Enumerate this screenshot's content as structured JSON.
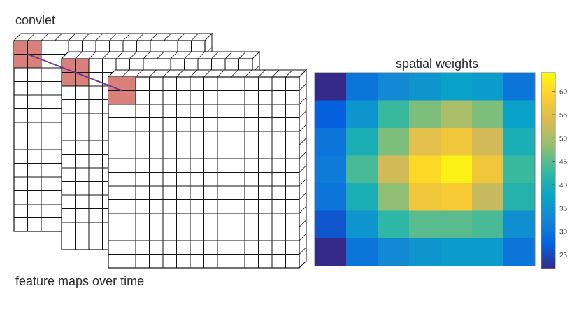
{
  "labels": {
    "convlet": "convlet",
    "feature_maps": "feature maps over time",
    "heatmap_title": "spatial weights"
  },
  "feature_maps": {
    "count": 3,
    "grid_cols": 14,
    "grid_rows": 14,
    "convlet_size": 2,
    "cell_color": "#ffffff",
    "line_color": "#111111",
    "highlight_color": "#d9807a",
    "connector_color": "#6a3d9a"
  },
  "chart_data": {
    "type": "heatmap",
    "title": "spatial weights",
    "rows": 7,
    "cols": 7,
    "values": [
      [
        22,
        30,
        33,
        35,
        37,
        36,
        30
      ],
      [
        27,
        35,
        43,
        47,
        50,
        47,
        37
      ],
      [
        30,
        40,
        47,
        55,
        57,
        53,
        40
      ],
      [
        31,
        44,
        53,
        60,
        63,
        57,
        43
      ],
      [
        30,
        40,
        48,
        57,
        58,
        52,
        41
      ],
      [
        26,
        35,
        42,
        45,
        45,
        44,
        34
      ],
      [
        22,
        30,
        33,
        35,
        36,
        36,
        30
      ]
    ],
    "colorbar": {
      "min": 22,
      "max": 64,
      "ticks": [
        25,
        30,
        35,
        40,
        45,
        50,
        55,
        60
      ],
      "colormap": "parula",
      "colormap_stops": [
        "#352a87",
        "#0363e1",
        "#1485d4",
        "#06a7c6",
        "#38b99e",
        "#92bf73",
        "#d9ba56",
        "#fcce2e",
        "#f9fb0e"
      ]
    }
  }
}
